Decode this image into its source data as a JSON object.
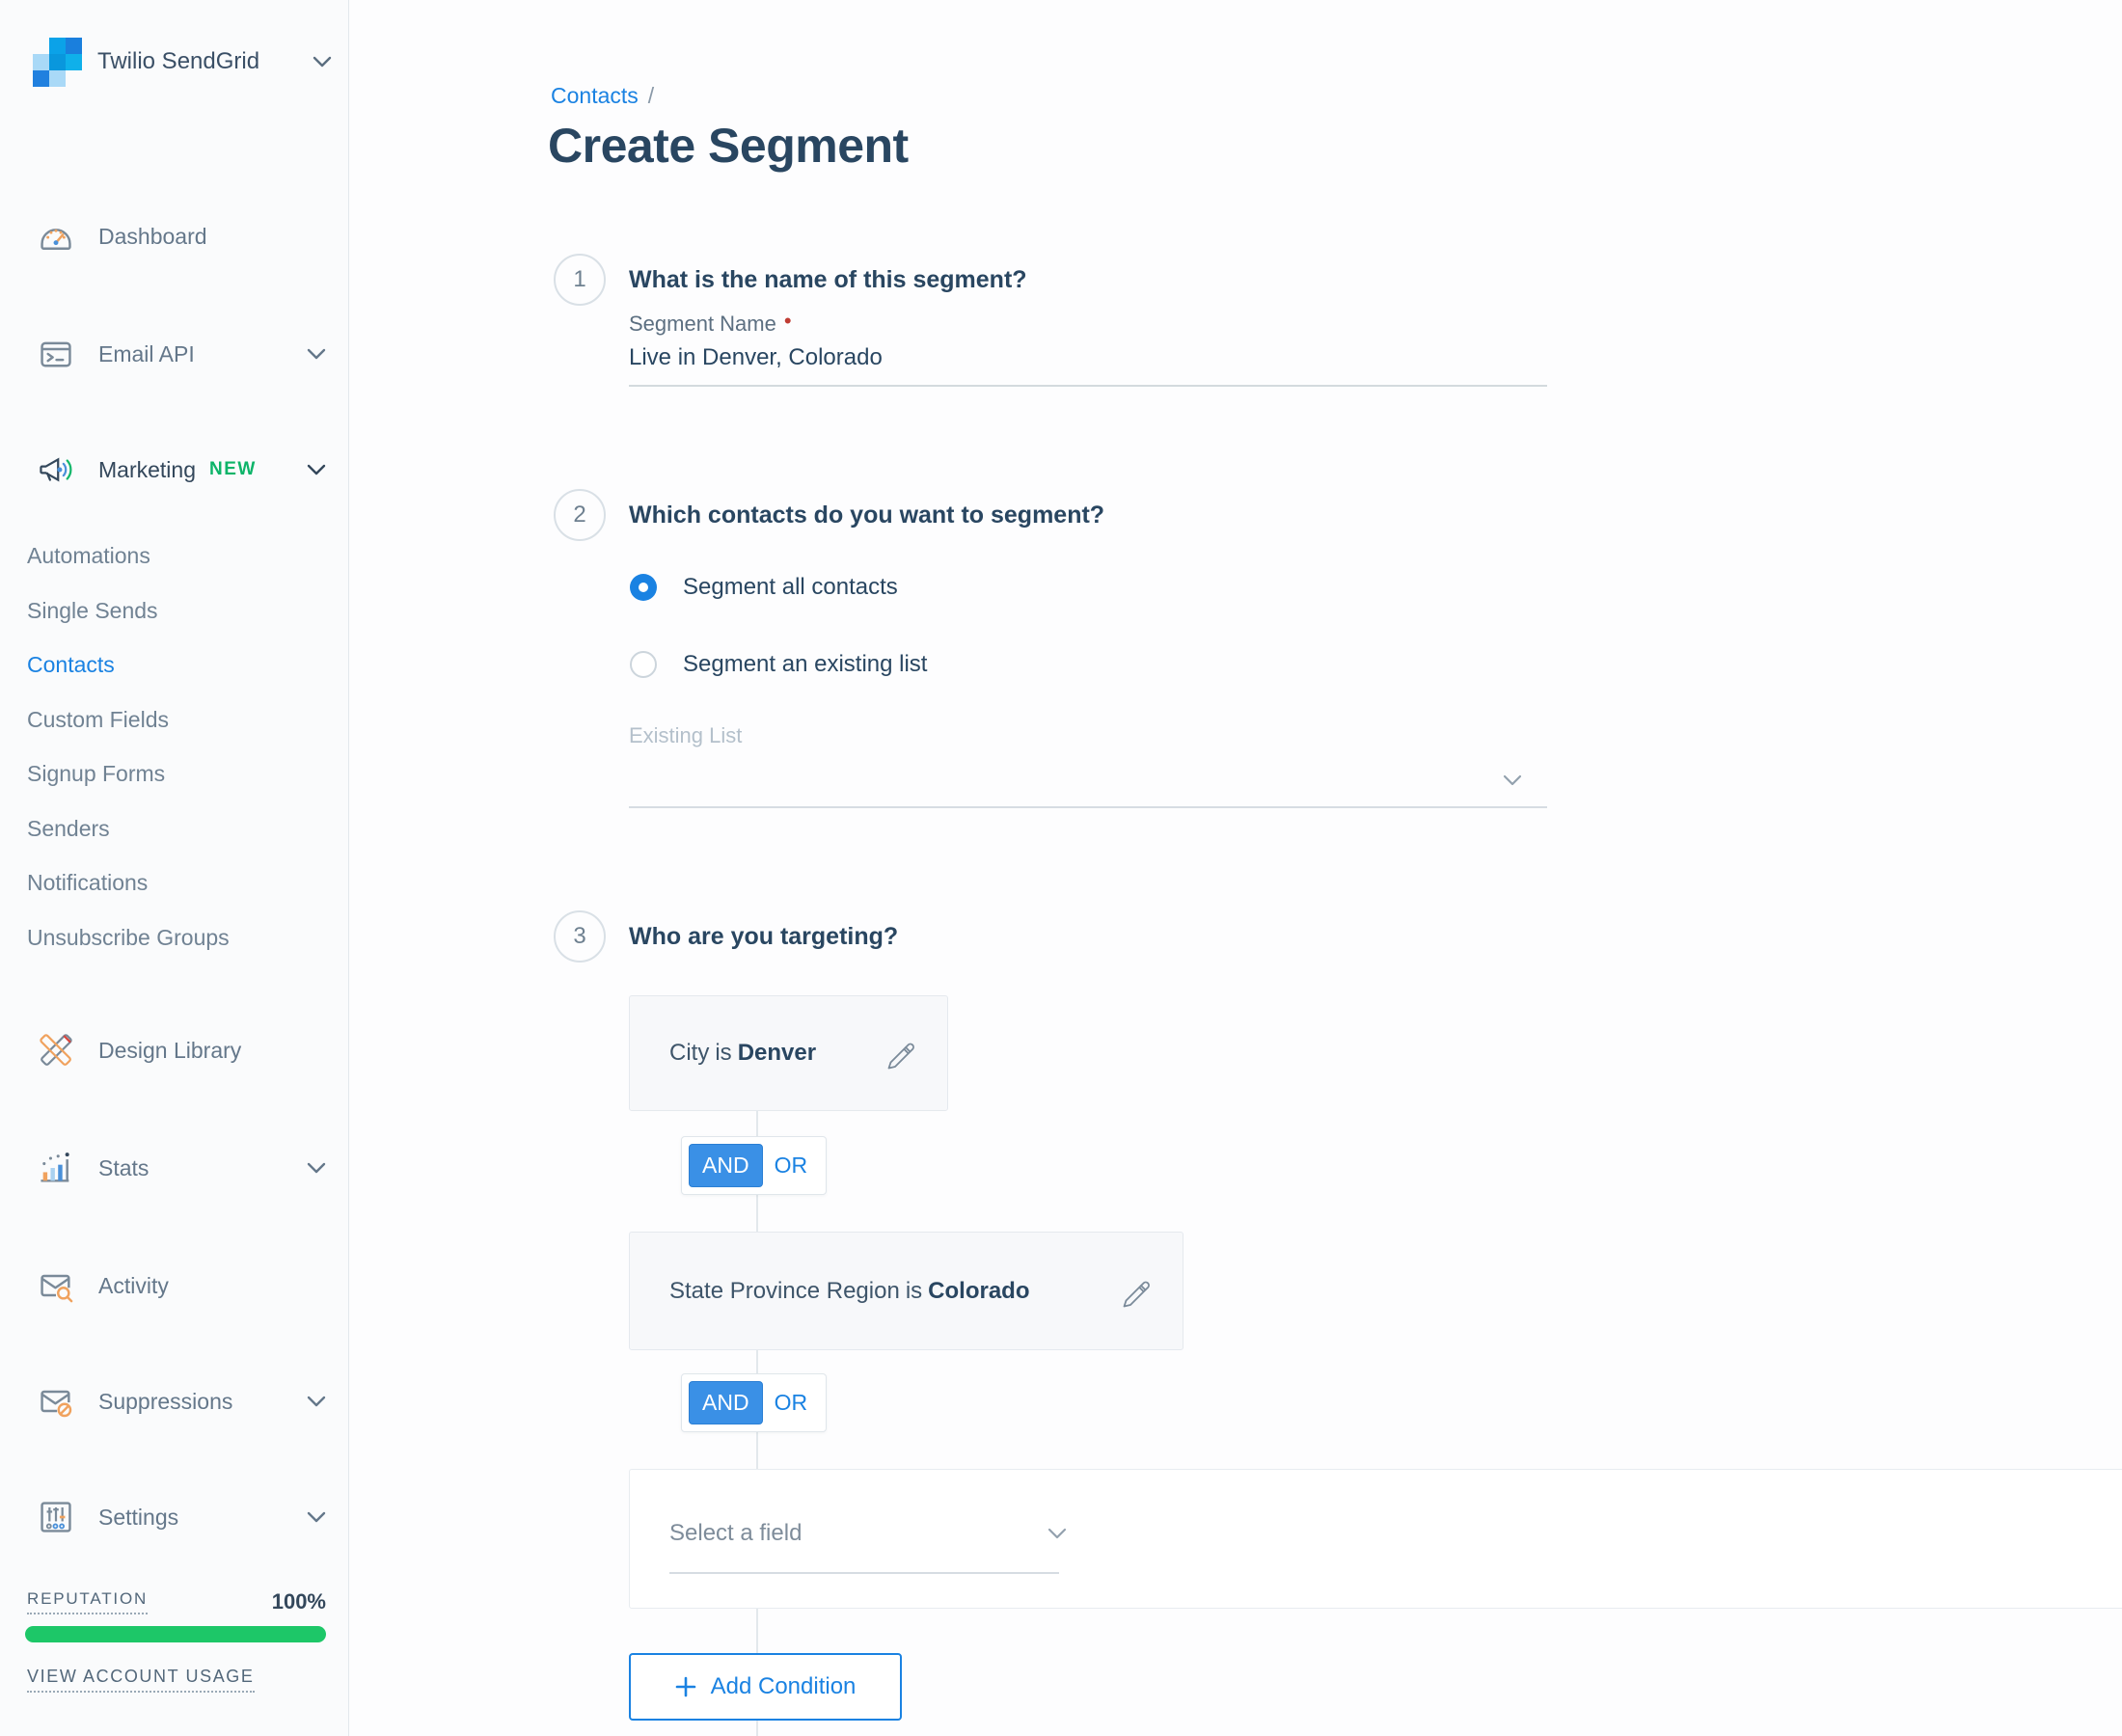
{
  "brand": {
    "name": "Twilio SendGrid"
  },
  "sidebar": {
    "top_items": [
      {
        "label": "Dashboard"
      },
      {
        "label": "Email API"
      },
      {
        "label": "Marketing",
        "badge": "NEW"
      }
    ],
    "marketing_subitems": [
      {
        "label": "Automations"
      },
      {
        "label": "Single Sends"
      },
      {
        "label": "Contacts",
        "active": true
      },
      {
        "label": "Custom Fields"
      },
      {
        "label": "Signup Forms"
      },
      {
        "label": "Senders"
      },
      {
        "label": "Notifications"
      },
      {
        "label": "Unsubscribe Groups"
      }
    ],
    "bottom_items": [
      {
        "label": "Design Library"
      },
      {
        "label": "Stats"
      },
      {
        "label": "Activity"
      },
      {
        "label": "Suppressions"
      },
      {
        "label": "Settings"
      }
    ],
    "reputation": {
      "label": "REPUTATION",
      "value": "100%",
      "percent": 100
    },
    "account_usage_link": "VIEW ACCOUNT USAGE"
  },
  "header": {
    "breadcrumb": "Contacts",
    "breadcrumb_sep": "/",
    "title": "Create Segment"
  },
  "steps": {
    "step1": {
      "number": "1",
      "question": "What is the name of this segment?",
      "field_label": "Segment Name",
      "required_marker": "•",
      "value": "Live in Denver, Colorado"
    },
    "step2": {
      "number": "2",
      "question": "Which contacts do you want to segment?",
      "options": [
        {
          "label": "Segment all contacts",
          "selected": true
        },
        {
          "label": "Segment an existing list",
          "selected": false
        }
      ],
      "existing_list_label": "Existing List"
    },
    "step3": {
      "number": "3",
      "question": "Who are you targeting?",
      "conditions": [
        {
          "field": "City",
          "operator": "is",
          "value": "Denver"
        },
        {
          "field": "State Province Region",
          "operator": "is",
          "value": "Colorado"
        }
      ],
      "logic_toggle": {
        "and": "AND",
        "or": "OR",
        "selected": "AND"
      },
      "select_field_placeholder": "Select a field",
      "add_condition_label": "Add Condition"
    }
  },
  "colors": {
    "accent_blue": "#1a82e2",
    "navy": "#294661",
    "badge_green": "#0db469",
    "reputation_green": "#1dc768",
    "required_red": "#c03c33"
  }
}
